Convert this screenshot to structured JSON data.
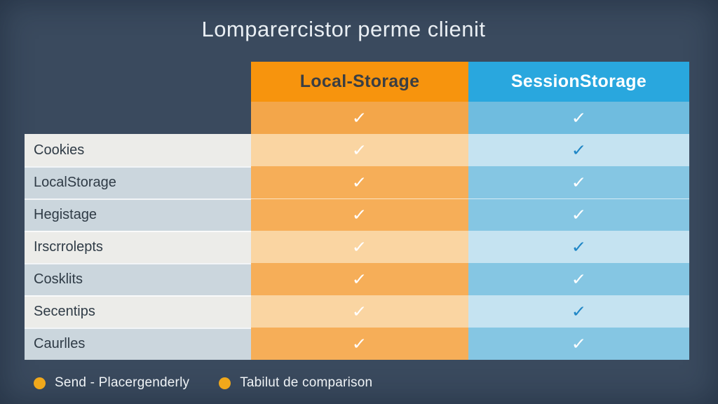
{
  "title": "Lomparercistor perme clienit",
  "columns": [
    {
      "id": "local",
      "label": "Local-Storage"
    },
    {
      "id": "session",
      "label": "SessionStorage"
    }
  ],
  "rows": [
    {
      "label": "",
      "label_bg": null,
      "shade": "dark",
      "local_check": "white",
      "session_check": "white",
      "label_divider": false,
      "full_divider": false
    },
    {
      "label": "Cookies",
      "label_bg": "light",
      "shade": "light",
      "local_check": "white",
      "session_check": "blue",
      "label_divider": false,
      "full_divider": false
    },
    {
      "label": "LocalStorage",
      "label_bg": "gray",
      "shade": "medium",
      "local_check": "white",
      "session_check": "white",
      "label_divider": true,
      "full_divider": false
    },
    {
      "label": "Hegistage",
      "label_bg": "gray",
      "shade": "medium",
      "local_check": "white",
      "session_check": "white",
      "label_divider": true,
      "full_divider": true
    },
    {
      "label": "Irscrrolepts",
      "label_bg": "light",
      "shade": "light",
      "local_check": "white",
      "session_check": "blue",
      "label_divider": true,
      "full_divider": false
    },
    {
      "label": "Cosklits",
      "label_bg": "gray",
      "shade": "medium",
      "local_check": "white",
      "session_check": "white",
      "label_divider": true,
      "full_divider": false
    },
    {
      "label": "Secentips",
      "label_bg": "light",
      "shade": "light",
      "local_check": "white",
      "session_check": "blue",
      "label_divider": true,
      "full_divider": false
    },
    {
      "label": "Caurlles",
      "label_bg": "gray",
      "shade": "medium",
      "local_check": "white",
      "session_check": "white",
      "label_divider": true,
      "full_divider": false
    }
  ],
  "legend": {
    "items": [
      {
        "label": "Send - Placergenderly"
      },
      {
        "label": "Tabilut de comparison"
      }
    ]
  },
  "colors": {
    "background": "#3A4A5E",
    "title_text": "#E9EEF3",
    "header_orange": "#F7940D",
    "header_orange_text": "#3A3E43",
    "header_blue": "#29A7DE",
    "header_blue_text": "#FFFFFF",
    "orange_dark": "#F3A64A",
    "orange_medium": "#F6AE58",
    "orange_light": "#FAD5A2",
    "blue_dark": "#6FBCDF",
    "blue_medium": "#85C6E3",
    "blue_light": "#C5E3F1",
    "label_light_bg": "#ECECE9",
    "label_gray_bg": "#CBD6DD",
    "label_text": "#2F3B46",
    "check_white": "#FFFFFF",
    "check_blue": "#1F86C6",
    "legend_dot": "#F0A81B",
    "legend_text": "#EFF3F6"
  },
  "check_glyph": "✓"
}
